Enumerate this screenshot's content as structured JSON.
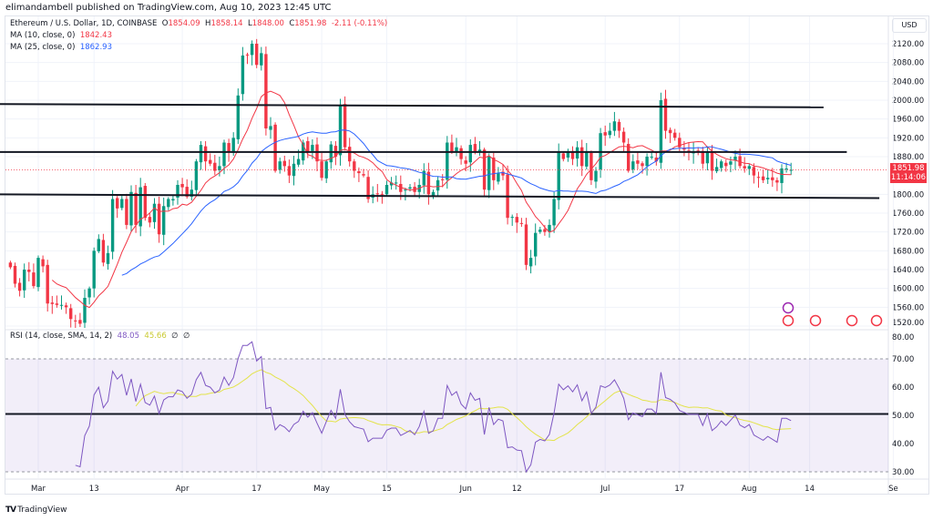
{
  "header": {
    "published": "elimandambell published on TradingView.com, Aug 10, 2023 12:45 UTC"
  },
  "legend": {
    "symbol": "Ethereum / U.S. Dollar, 1D, COINBASE",
    "open_label": "O",
    "open": "1854.09",
    "high_label": "H",
    "high": "1858.14",
    "low_label": "L",
    "low": "1848.00",
    "close_label": "C",
    "close": "1851.98",
    "change": "-2.11 (-0.11%)",
    "ma10_label": "MA (10, close, 0)",
    "ma10_value": "1842.43",
    "ma25_label": "MA (25, close, 0)",
    "ma25_value": "1862.93"
  },
  "rsi_legend": {
    "label": "RSI (14, close, SMA, 14, 2)",
    "rsi": "48.05",
    "sma": "45.66",
    "extra1": "∅",
    "extra2": "∅"
  },
  "price_axis": {
    "currency": "USD",
    "last_price": "1851.98",
    "countdown": "11:14:06"
  },
  "footer": {
    "logo": "TradingView"
  },
  "colors": {
    "up": "#089981",
    "down": "#f23645",
    "ma10": "#f23645",
    "ma25": "#2962ff",
    "rsi": "#7e57c2",
    "rsi_sma": "#e3e34a",
    "levels": "#131722"
  },
  "chart_data": {
    "type": "candlestick",
    "interval": "1D",
    "x_start": "2023-02-23",
    "closes": [
      1645,
      1610,
      1595,
      1640,
      1635,
      1605,
      1665,
      1647,
      1568,
      1567,
      1565,
      1565,
      1560,
      1535,
      1530,
      1525,
      1580,
      1600,
      1680,
      1705,
      1655,
      1675,
      1790,
      1770,
      1790,
      1735,
      1805,
      1735,
      1815,
      1750,
      1740,
      1780,
      1715,
      1775,
      1790,
      1790,
      1820,
      1815,
      1795,
      1810,
      1870,
      1905,
      1870,
      1865,
      1850,
      1860,
      1910,
      1890,
      1920,
      2010,
      2095,
      2095,
      2120,
      2075,
      2100,
      1940,
      1945,
      1850,
      1870,
      1860,
      1840,
      1865,
      1875,
      1910,
      1890,
      1905,
      1870,
      1835,
      1870,
      1906,
      1880,
      1990,
      1900,
      1870,
      1850,
      1845,
      1840,
      1790,
      1800,
      1800,
      1800,
      1820,
      1825,
      1825,
      1805,
      1810,
      1815,
      1805,
      1820,
      1850,
      1800,
      1805,
      1830,
      1830,
      1910,
      1890,
      1900,
      1875,
      1865,
      1905,
      1890,
      1895,
      1810,
      1880,
      1830,
      1845,
      1840,
      1750,
      1752,
      1740,
      1738,
      1650,
      1665,
      1718,
      1725,
      1720,
      1735,
      1790,
      1890,
      1875,
      1890,
      1875,
      1900,
      1860,
      1890,
      1830,
      1850,
      1930,
      1925,
      1935,
      1955,
      1935,
      1910,
      1850,
      1870,
      1865,
      1860,
      1880,
      1880,
      1870,
      2000,
      1935,
      1930,
      1920,
      1900,
      1895,
      1890,
      1890,
      1890,
      1865,
      1890,
      1850,
      1858,
      1870,
      1860,
      1870,
      1880,
      1860,
      1855,
      1860,
      1840,
      1835,
      1830,
      1835,
      1830,
      1825,
      1855,
      1855,
      1852
    ],
    "price_axis": {
      "ticks": [
        "2120.00",
        "2080.00",
        "2040.00",
        "2000.00",
        "1960.00",
        "1920.00",
        "1880.00",
        "1800.00",
        "1760.00",
        "1720.00",
        "1680.00",
        "1640.00",
        "1600.00",
        "1560.00",
        "1520.00"
      ],
      "range": [
        1520,
        2120
      ]
    },
    "rsi_axis": {
      "ticks": [
        "80.00",
        "70.00",
        "60.00",
        "50.00",
        "40.00",
        "30.00"
      ],
      "range": [
        30,
        80
      ],
      "band": [
        30,
        70
      ]
    },
    "x_ticks": [
      {
        "label": "Mar",
        "date": "2023-03-01"
      },
      {
        "label": "13",
        "date": "2023-03-13"
      },
      {
        "label": "Apr",
        "date": "2023-04-01"
      },
      {
        "label": "17",
        "date": "2023-04-17"
      },
      {
        "label": "May",
        "date": "2023-05-01"
      },
      {
        "label": "15",
        "date": "2023-05-15"
      },
      {
        "label": "Jun",
        "date": "2023-06-01"
      },
      {
        "label": "12",
        "date": "2023-06-12"
      },
      {
        "label": "Jul",
        "date": "2023-07-01"
      },
      {
        "label": "17",
        "date": "2023-07-17"
      },
      {
        "label": "Aug",
        "date": "2023-08-01"
      },
      {
        "label": "14",
        "date": "2023-08-14"
      },
      {
        "label": "Se",
        "date": "2023-09-01"
      }
    ],
    "horizontal_levels": [
      {
        "from": [
          "2023-02-23",
          1992
        ],
        "to": [
          "2023-08-17",
          1985
        ]
      },
      {
        "from": [
          "2023-02-23",
          1890
        ],
        "to": [
          "2023-08-22",
          1890
        ]
      },
      {
        "from": [
          "2023-02-23",
          1800
        ],
        "to": [
          "2023-08-29",
          1792
        ]
      }
    ],
    "rsi_level": 50.5,
    "indicators": [
      "MA 10",
      "MA 25",
      "RSI 14",
      "RSI SMA 14"
    ]
  }
}
